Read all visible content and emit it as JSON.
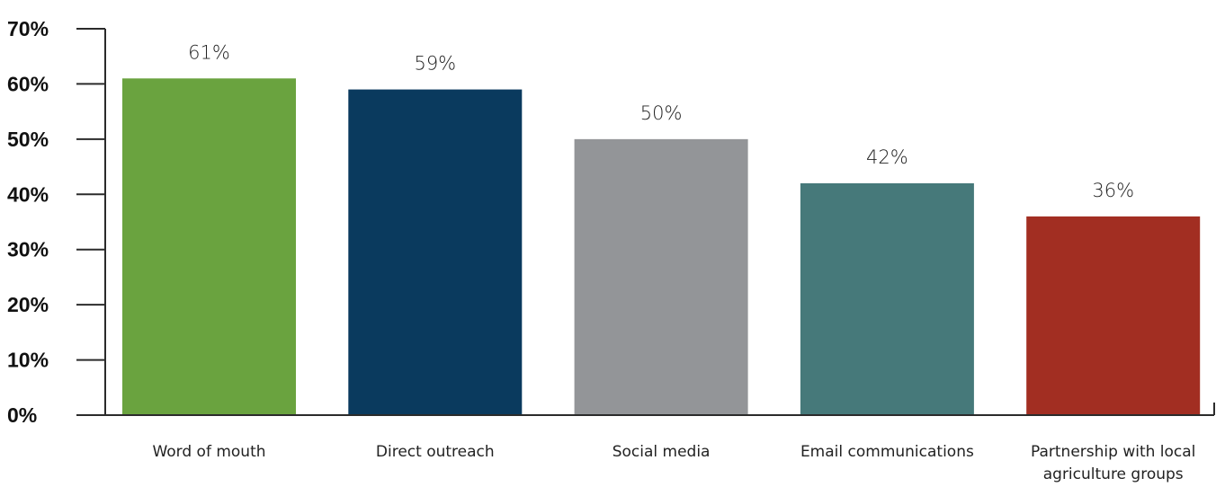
{
  "chart_data": {
    "type": "bar",
    "title": "",
    "xlabel": "",
    "ylabel": "",
    "categories": [
      [
        "Word of mouth"
      ],
      [
        "Direct outreach"
      ],
      [
        "Social media"
      ],
      [
        "Email communications"
      ],
      [
        "Partnership with local",
        "agriculture groups"
      ]
    ],
    "values": [
      61,
      59,
      50,
      42,
      36
    ],
    "data_labels": [
      "61%",
      "59%",
      "50%",
      "42%",
      "36%"
    ],
    "colors": [
      "#6aa33f",
      "#0a3a5e",
      "#939598",
      "#46797a",
      "#a22e22"
    ],
    "ylim": [
      0,
      70
    ],
    "yticks": [
      0,
      10,
      20,
      30,
      40,
      50,
      60,
      70
    ],
    "ytick_labels": [
      "0%",
      "10%",
      "20%",
      "30%",
      "40%",
      "50%",
      "60%",
      "70%"
    ],
    "grid": false,
    "legend": "none"
  }
}
